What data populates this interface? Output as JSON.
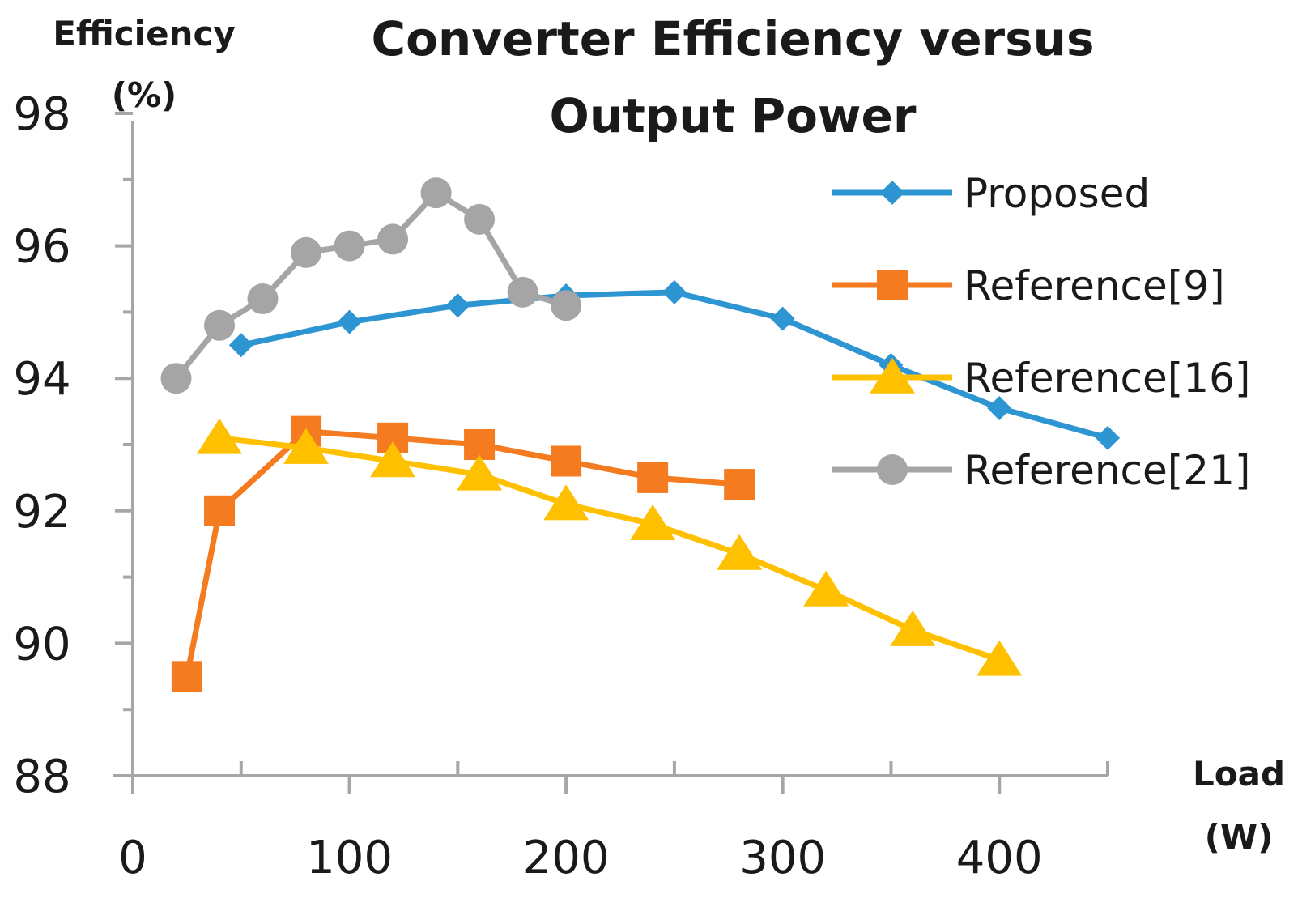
{
  "chart_data": {
    "type": "line",
    "title_lines": [
      "Converter Efficiency  versus",
      "Output Power"
    ],
    "ylabel_lines": [
      "Efficiency",
      "(%)"
    ],
    "xlabel_lines": [
      "Load",
      "(W)"
    ],
    "xlim": [
      0,
      450
    ],
    "ylim": [
      88,
      98
    ],
    "x_major_ticks": [
      0,
      100,
      200,
      300,
      400
    ],
    "x_minor_ticks": [
      50,
      150,
      250,
      350,
      450
    ],
    "y_major_ticks": [
      88,
      90,
      92,
      94,
      96,
      98
    ],
    "y_minor_ticks": [
      89,
      91,
      93,
      95,
      97
    ],
    "legend_position": "right",
    "series": [
      {
        "name": "Proposed",
        "color": "#2E95D3",
        "marker": "diamond",
        "points": [
          [
            50,
            94.5
          ],
          [
            100,
            94.85
          ],
          [
            150,
            95.1
          ],
          [
            200,
            95.25
          ],
          [
            250,
            95.3
          ],
          [
            300,
            94.9
          ],
          [
            350,
            94.2
          ],
          [
            400,
            93.55
          ],
          [
            450,
            93.1
          ]
        ]
      },
      {
        "name": "Reference[9]",
        "color": "#F47B20",
        "marker": "square",
        "points": [
          [
            25,
            89.5
          ],
          [
            40,
            92.0
          ],
          [
            80,
            93.2
          ],
          [
            120,
            93.1
          ],
          [
            160,
            93.0
          ],
          [
            200,
            92.75
          ],
          [
            240,
            92.5
          ],
          [
            280,
            92.4
          ]
        ]
      },
      {
        "name": "Reference[16]",
        "color": "#FFC000",
        "marker": "triangle",
        "points": [
          [
            40,
            93.1
          ],
          [
            80,
            92.95
          ],
          [
            120,
            92.75
          ],
          [
            160,
            92.55
          ],
          [
            200,
            92.1
          ],
          [
            240,
            91.8
          ],
          [
            280,
            91.35
          ],
          [
            320,
            90.8
          ],
          [
            360,
            90.2
          ],
          [
            400,
            89.75
          ]
        ]
      },
      {
        "name": "Reference[21]",
        "color": "#A5A5A5",
        "marker": "circle",
        "points": [
          [
            20,
            94.0
          ],
          [
            40,
            94.8
          ],
          [
            60,
            95.2
          ],
          [
            80,
            95.9
          ],
          [
            100,
            96.0
          ],
          [
            120,
            96.1
          ],
          [
            140,
            96.8
          ],
          [
            160,
            96.4
          ],
          [
            180,
            95.3
          ],
          [
            200,
            95.1
          ]
        ]
      }
    ]
  }
}
